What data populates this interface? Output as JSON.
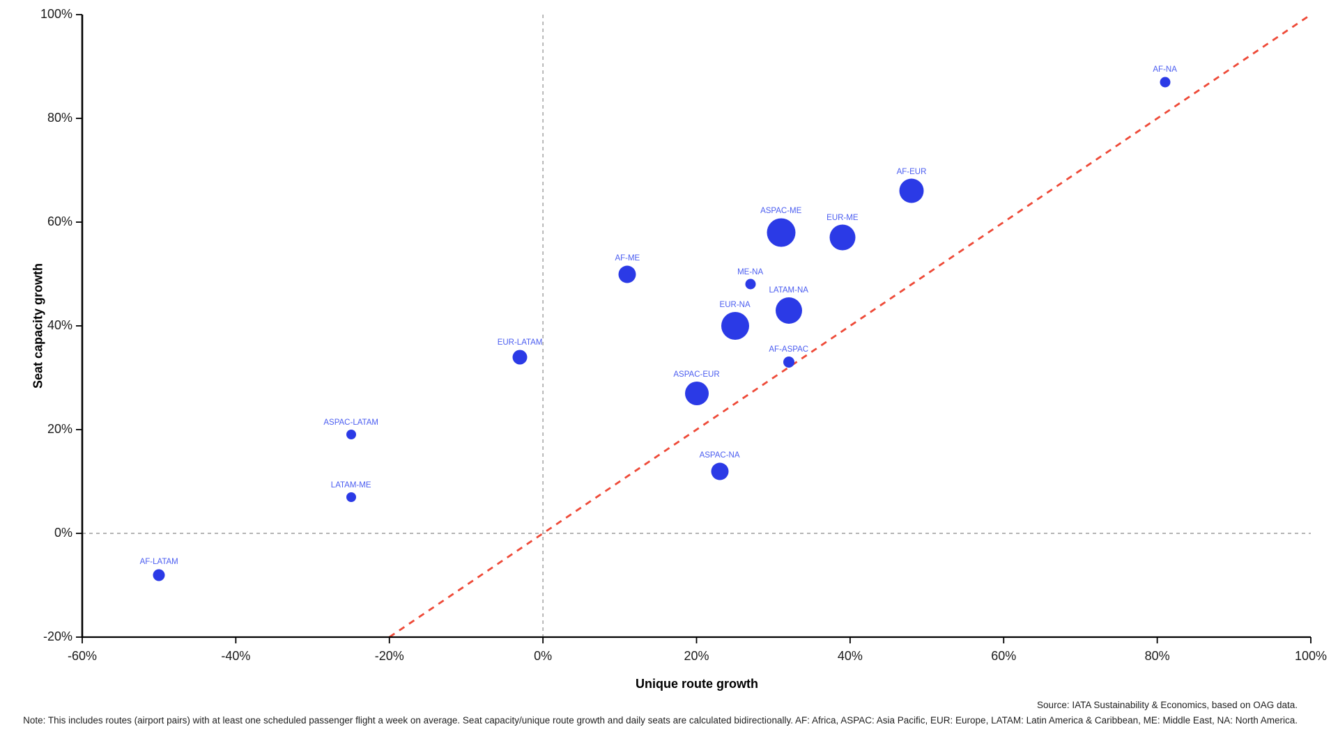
{
  "chart_data": {
    "type": "scatter",
    "title": "",
    "xlabel": "Unique route growth",
    "ylabel": "Seat capacity growth",
    "xlim": [
      -60,
      100
    ],
    "ylim": [
      -20,
      100
    ],
    "x_ticks": [
      {
        "value": -60,
        "label": "-60%"
      },
      {
        "value": -40,
        "label": "-40%"
      },
      {
        "value": -20,
        "label": "-20%"
      },
      {
        "value": 0,
        "label": "0%"
      },
      {
        "value": 20,
        "label": "20%"
      },
      {
        "value": 40,
        "label": "40%"
      },
      {
        "value": 60,
        "label": "60%"
      },
      {
        "value": 80,
        "label": "80%"
      },
      {
        "value": 100,
        "label": "100%"
      }
    ],
    "y_ticks": [
      {
        "value": -20,
        "label": "-20%"
      },
      {
        "value": 0,
        "label": "0%"
      },
      {
        "value": 20,
        "label": "20%"
      },
      {
        "value": 40,
        "label": "40%"
      },
      {
        "value": 60,
        "label": "60%"
      },
      {
        "value": 80,
        "label": "80%"
      },
      {
        "value": 100,
        "label": "100%"
      }
    ],
    "grid": false,
    "legend": "none",
    "bubble_size_encodes": "daily seats (relative, radius in px)",
    "reference_lines": [
      {
        "id": "zero-vertical",
        "type": "vertical",
        "x": 0,
        "style": "dashed",
        "color": "#9b9b9b"
      },
      {
        "id": "zero-horizontal",
        "type": "horizontal",
        "y": 0,
        "style": "dashed",
        "color": "#9b9b9b"
      },
      {
        "id": "parity-diagonal",
        "type": "segment",
        "from": {
          "x": -20,
          "y": -20
        },
        "to": {
          "x": 100,
          "y": 100
        },
        "style": "dashed",
        "color": "#ee4a38"
      }
    ],
    "points": [
      {
        "label": "AF-NA",
        "x": 81,
        "y": 87,
        "r": 7.5
      },
      {
        "label": "AF-EUR",
        "x": 48,
        "y": 66,
        "r": 17.5
      },
      {
        "label": "ASPAC-ME",
        "x": 31,
        "y": 58,
        "r": 20.5
      },
      {
        "label": "EUR-ME",
        "x": 39,
        "y": 57,
        "r": 18.5
      },
      {
        "label": "AF-ME",
        "x": 11,
        "y": 50,
        "r": 12.5
      },
      {
        "label": "ME-NA",
        "x": 27,
        "y": 48,
        "r": 7.5
      },
      {
        "label": "LATAM-NA",
        "x": 32,
        "y": 43,
        "r": 19
      },
      {
        "label": "EUR-NA",
        "x": 25,
        "y": 40,
        "r": 20
      },
      {
        "label": "EUR-LATAM",
        "x": -3,
        "y": 34,
        "r": 10.5
      },
      {
        "label": "AF-ASPAC",
        "x": 32,
        "y": 33,
        "r": 8
      },
      {
        "label": "ASPAC-EUR",
        "x": 20,
        "y": 27,
        "r": 17
      },
      {
        "label": "ASPAC-LATAM",
        "x": -25,
        "y": 19,
        "r": 7
      },
      {
        "label": "ASPAC-NA",
        "x": 23,
        "y": 12,
        "r": 12.5
      },
      {
        "label": "LATAM-ME",
        "x": -25,
        "y": 7,
        "r": 7
      },
      {
        "label": "AF-LATAM",
        "x": -50,
        "y": -8,
        "r": 8.5
      }
    ],
    "colors": {
      "bubble": "#2b3ae6",
      "point_label": "#4a5cf0",
      "parity_line": "#ee4a38",
      "zero_line": "#9b9b9b",
      "axis": "#000000",
      "tick_label": "#1a1a1a"
    }
  },
  "footer": {
    "source": "Source: IATA Sustainability & Economics, based on OAG data.",
    "note": "Note: This includes routes (airport pairs) with at least one scheduled passenger flight a week on average. Seat capacity/unique route growth and daily seats are calculated bidirectionally. AF: Africa, ASPAC: Asia Pacific, EUR: Europe, LATAM: Latin America & Caribbean, ME: Middle East, NA: North America."
  }
}
